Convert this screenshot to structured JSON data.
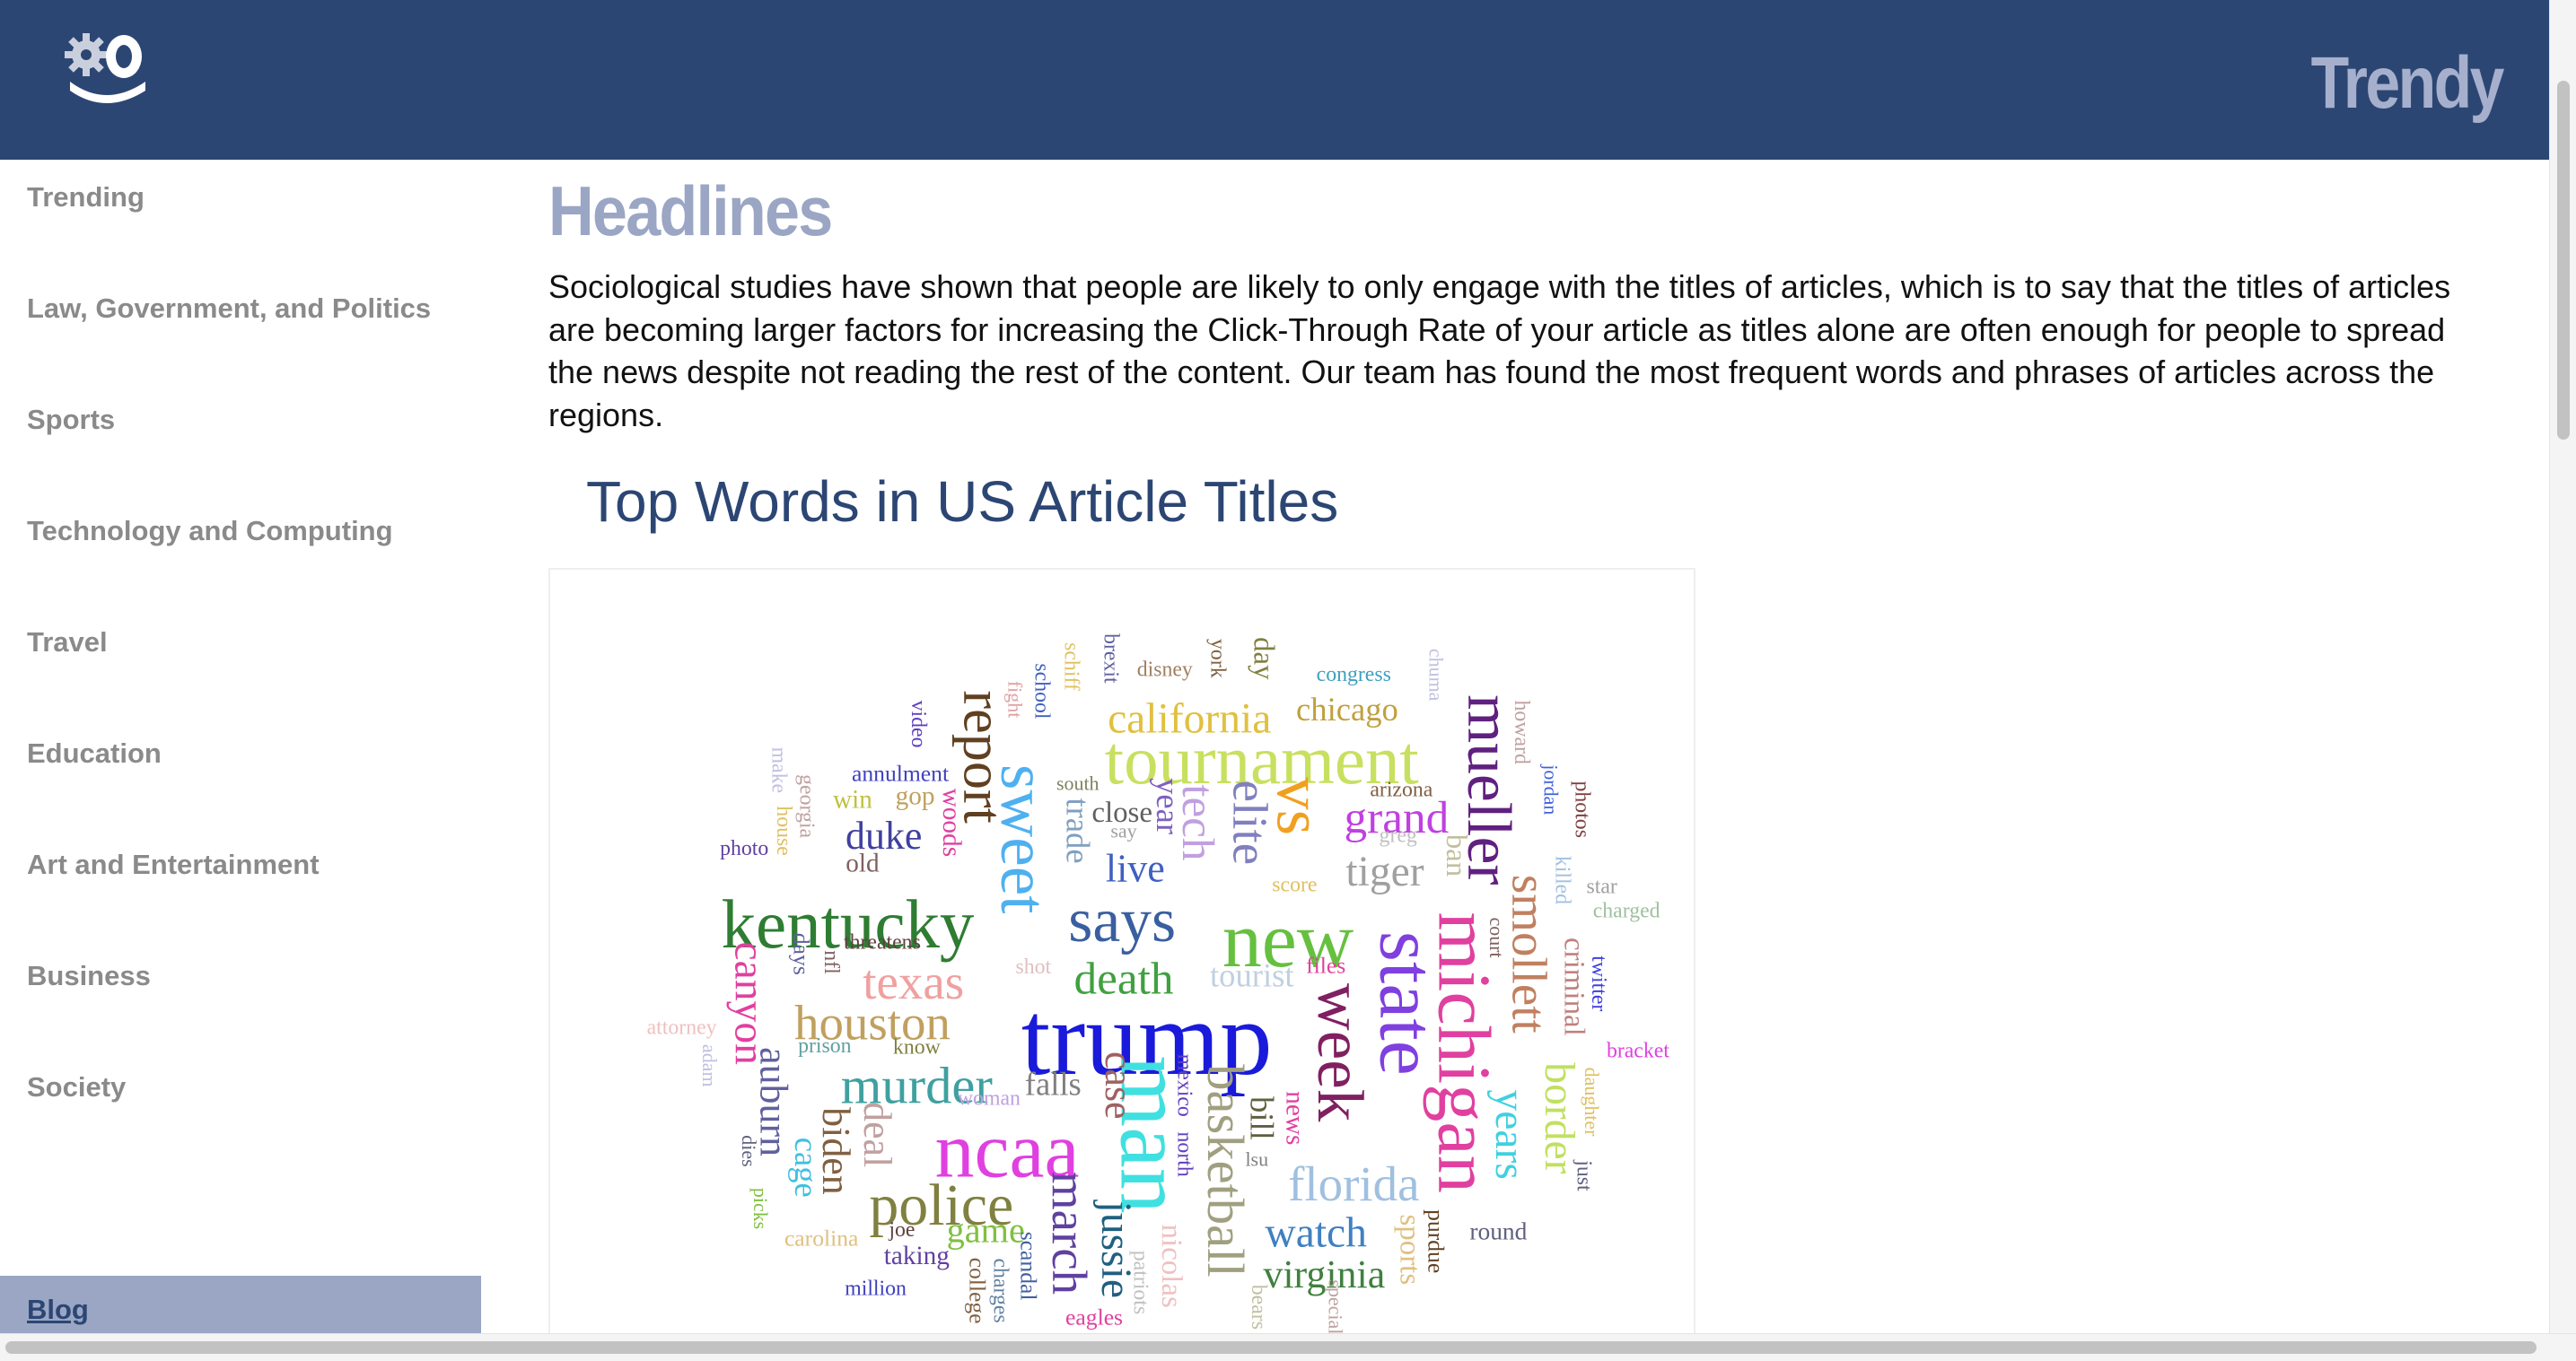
{
  "header": {
    "brand": "Trendy"
  },
  "sidebar": {
    "items": [
      "Trending",
      "Law, Government, and Politics",
      "Sports",
      "Technology and Computing",
      "Travel",
      "Education",
      "Art and Entertainment",
      "Business",
      "Society"
    ],
    "footer_link": "Blog"
  },
  "main": {
    "title": "Headlines",
    "paragraph": "Sociological studies have shown that people are likely to only engage with the titles of articles, which is to say that the titles of articles are becoming larger factors for increasing the Click-Through Rate of your article as titles alone are often enough for people to spread the news despite not reading the rest of the content. Our team has found the most frequent words and phrases of articles across the regions.",
    "section_title": "Top Words in US Article Titles",
    "word_cloud": {
      "words": [
        "trump",
        "ncaa",
        "new",
        "kentucky",
        "says",
        "tournament",
        "sweet",
        "man",
        "state",
        "michigan",
        "mueller",
        "murder",
        "police",
        "houston",
        "texas",
        "death",
        "week",
        "vs",
        "grand",
        "tiger",
        "elite",
        "tech",
        "report",
        "california",
        "chicago",
        "smollett",
        "border",
        "years",
        "basketball",
        "florida",
        "watch",
        "virginia",
        "march",
        "jussie",
        "canyon",
        "auburn",
        "biden",
        "cage",
        "deal",
        "duke",
        "live",
        "tourist",
        "falls",
        "case",
        "bill",
        "game",
        "annulment",
        "win",
        "gop",
        "old",
        "woods",
        "trade",
        "close",
        "year",
        "south",
        "say",
        "photo",
        "threatens",
        "attorney",
        "prison",
        "know",
        "woman",
        "taking",
        "million",
        "carolina",
        "joe",
        "eagles",
        "files",
        "score",
        "arizona",
        "greg",
        "round",
        "star",
        "charged",
        "bracket",
        "congress",
        "disney",
        "twitter",
        "photos",
        "criminal",
        "sports",
        "purdue",
        "nicolas",
        "scandal",
        "college",
        "charges",
        "news",
        "ban",
        "day",
        "york",
        "brexit",
        "schiff",
        "school",
        "fight",
        "video",
        "make",
        "georgia",
        "house",
        "days",
        "nfl",
        "shot",
        "mexico",
        "north",
        "howard",
        "chuma",
        "killed",
        "jordan",
        "court",
        "lsu",
        "adam",
        "dies",
        "picks",
        "daughter",
        "just",
        "patriots",
        "bears",
        "special"
      ]
    }
  }
}
